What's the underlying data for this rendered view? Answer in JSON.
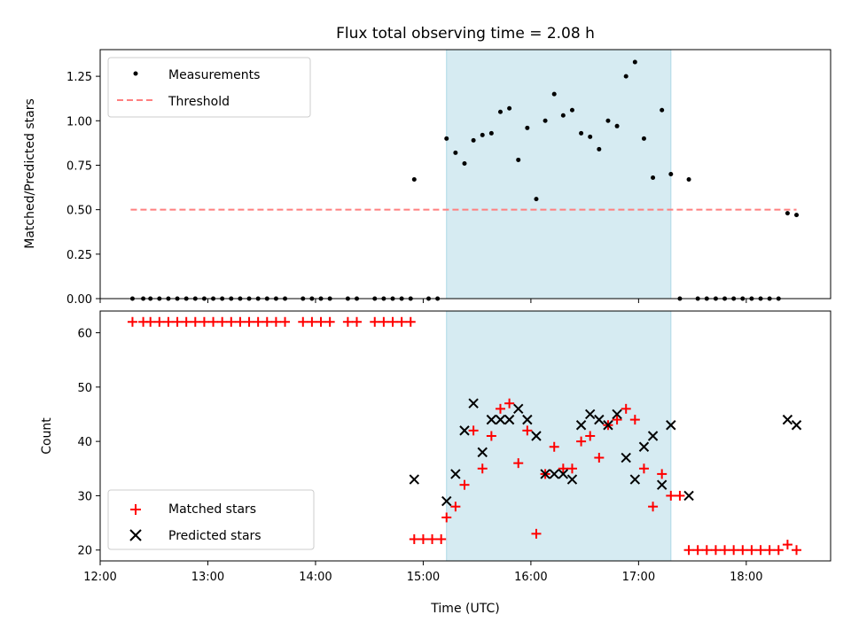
{
  "title": "Flux total observing time = 2.08 h",
  "colors": {
    "measurement": "#000000",
    "threshold": "#ff7f7f",
    "matched": "#ff0000",
    "predicted": "#000000",
    "shade": "#add8e6"
  },
  "chart_data": [
    {
      "type": "scatter",
      "title": "Flux total observing time = 2.08 h",
      "ylabel": "Matched/Predicted stars",
      "xlabel": "",
      "xlim": [
        "12:00",
        "18:47"
      ],
      "ylim": [
        0,
        1.4
      ],
      "yticks": [
        "0.00",
        "0.25",
        "0.50",
        "0.75",
        "1.00",
        "1.25"
      ],
      "legend": {
        "location": "upper left",
        "entries": [
          "Measurements",
          "Threshold"
        ]
      },
      "shaded_interval": [
        "15:13",
        "17:18"
      ],
      "threshold": {
        "name": "Threshold",
        "value": 0.5,
        "x": [
          "12:17",
          "18:28"
        ]
      },
      "series": [
        {
          "name": "Measurements",
          "points": [
            [
              "12:18",
              0
            ],
            [
              "12:24",
              0
            ],
            [
              "12:28",
              0
            ],
            [
              "12:33",
              0
            ],
            [
              "12:38",
              0
            ],
            [
              "12:43",
              0
            ],
            [
              "12:48",
              0
            ],
            [
              "12:53",
              0
            ],
            [
              "12:58",
              0
            ],
            [
              "13:03",
              0
            ],
            [
              "13:08",
              0
            ],
            [
              "13:13",
              0
            ],
            [
              "13:18",
              0
            ],
            [
              "13:23",
              0
            ],
            [
              "13:28",
              0
            ],
            [
              "13:33",
              0
            ],
            [
              "13:38",
              0
            ],
            [
              "13:43",
              0
            ],
            [
              "13:53",
              0
            ],
            [
              "13:58",
              0
            ],
            [
              "14:03",
              0
            ],
            [
              "14:08",
              0
            ],
            [
              "14:18",
              0
            ],
            [
              "14:23",
              0
            ],
            [
              "14:33",
              0
            ],
            [
              "14:38",
              0
            ],
            [
              "14:43",
              0
            ],
            [
              "14:48",
              0
            ],
            [
              "14:53",
              0
            ],
            [
              "14:55",
              0.67
            ],
            [
              "15:03",
              0
            ],
            [
              "15:08",
              0
            ],
            [
              "15:13",
              0.9
            ],
            [
              "15:18",
              0.82
            ],
            [
              "15:23",
              0.76
            ],
            [
              "15:28",
              0.89
            ],
            [
              "15:33",
              0.92
            ],
            [
              "15:38",
              0.93
            ],
            [
              "15:43",
              1.05
            ],
            [
              "15:48",
              1.07
            ],
            [
              "15:53",
              0.78
            ],
            [
              "15:58",
              0.96
            ],
            [
              "16:03",
              0.56
            ],
            [
              "16:08",
              1.0
            ],
            [
              "16:13",
              1.15
            ],
            [
              "16:18",
              1.03
            ],
            [
              "16:23",
              1.06
            ],
            [
              "16:28",
              0.93
            ],
            [
              "16:33",
              0.91
            ],
            [
              "16:38",
              0.84
            ],
            [
              "16:43",
              1.0
            ],
            [
              "16:48",
              0.97
            ],
            [
              "16:53",
              1.25
            ],
            [
              "16:58",
              1.33
            ],
            [
              "17:03",
              0.9
            ],
            [
              "17:08",
              0.68
            ],
            [
              "17:13",
              1.06
            ],
            [
              "17:18",
              0.7
            ],
            [
              "17:23",
              0
            ],
            [
              "17:28",
              0.67
            ],
            [
              "17:33",
              0
            ],
            [
              "17:38",
              0
            ],
            [
              "17:43",
              0
            ],
            [
              "17:48",
              0
            ],
            [
              "17:53",
              0
            ],
            [
              "17:58",
              0
            ],
            [
              "18:03",
              0
            ],
            [
              "18:08",
              0
            ],
            [
              "18:13",
              0
            ],
            [
              "18:18",
              0
            ],
            [
              "18:23",
              0.48
            ],
            [
              "18:28",
              0.47
            ]
          ]
        }
      ]
    },
    {
      "type": "scatter",
      "xlabel": "Time (UTC)",
      "ylabel": "Count",
      "xlim": [
        "12:00",
        "18:47"
      ],
      "ylim": [
        18,
        64
      ],
      "yticks": [
        "20",
        "30",
        "40",
        "50",
        "60"
      ],
      "xticks": [
        "12:00",
        "13:00",
        "14:00",
        "15:00",
        "16:00",
        "17:00",
        "18:00"
      ],
      "legend": {
        "location": "lower left",
        "entries": [
          "Matched stars",
          "Predicted stars"
        ]
      },
      "shaded_interval": [
        "15:13",
        "17:18"
      ],
      "series": [
        {
          "name": "Matched stars",
          "points": [
            [
              "12:18",
              62
            ],
            [
              "12:24",
              62
            ],
            [
              "12:28",
              62
            ],
            [
              "12:33",
              62
            ],
            [
              "12:38",
              62
            ],
            [
              "12:43",
              62
            ],
            [
              "12:48",
              62
            ],
            [
              "12:53",
              62
            ],
            [
              "12:58",
              62
            ],
            [
              "13:03",
              62
            ],
            [
              "13:08",
              62
            ],
            [
              "13:13",
              62
            ],
            [
              "13:18",
              62
            ],
            [
              "13:23",
              62
            ],
            [
              "13:28",
              62
            ],
            [
              "13:33",
              62
            ],
            [
              "13:38",
              62
            ],
            [
              "13:43",
              62
            ],
            [
              "13:53",
              62
            ],
            [
              "13:58",
              62
            ],
            [
              "14:03",
              62
            ],
            [
              "14:08",
              62
            ],
            [
              "14:18",
              62
            ],
            [
              "14:23",
              62
            ],
            [
              "14:33",
              62
            ],
            [
              "14:38",
              62
            ],
            [
              "14:43",
              62
            ],
            [
              "14:48",
              62
            ],
            [
              "14:53",
              62
            ],
            [
              "14:55",
              22
            ],
            [
              "15:00",
              22
            ],
            [
              "15:05",
              22
            ],
            [
              "15:10",
              22
            ],
            [
              "15:13",
              26
            ],
            [
              "15:18",
              28
            ],
            [
              "15:23",
              32
            ],
            [
              "15:28",
              42
            ],
            [
              "15:33",
              35
            ],
            [
              "15:38",
              41
            ],
            [
              "15:43",
              46
            ],
            [
              "15:48",
              47
            ],
            [
              "15:53",
              36
            ],
            [
              "15:58",
              42
            ],
            [
              "16:03",
              23
            ],
            [
              "16:08",
              34
            ],
            [
              "16:13",
              39
            ],
            [
              "16:18",
              35
            ],
            [
              "16:23",
              35
            ],
            [
              "16:28",
              40
            ],
            [
              "16:33",
              41
            ],
            [
              "16:38",
              37
            ],
            [
              "16:43",
              43
            ],
            [
              "16:48",
              44
            ],
            [
              "16:53",
              46
            ],
            [
              "16:58",
              44
            ],
            [
              "17:03",
              35
            ],
            [
              "17:08",
              28
            ],
            [
              "17:13",
              34
            ],
            [
              "17:18",
              30
            ],
            [
              "17:23",
              30
            ],
            [
              "17:28",
              20
            ],
            [
              "17:33",
              20
            ],
            [
              "17:38",
              20
            ],
            [
              "17:43",
              20
            ],
            [
              "17:48",
              20
            ],
            [
              "17:53",
              20
            ],
            [
              "17:58",
              20
            ],
            [
              "18:03",
              20
            ],
            [
              "18:08",
              20
            ],
            [
              "18:13",
              20
            ],
            [
              "18:18",
              20
            ],
            [
              "18:23",
              21
            ],
            [
              "18:28",
              20
            ]
          ]
        },
        {
          "name": "Predicted stars",
          "points": [
            [
              "14:55",
              33
            ],
            [
              "15:13",
              29
            ],
            [
              "15:18",
              34
            ],
            [
              "15:23",
              42
            ],
            [
              "15:28",
              47
            ],
            [
              "15:33",
              38
            ],
            [
              "15:38",
              44
            ],
            [
              "15:43",
              44
            ],
            [
              "15:48",
              44
            ],
            [
              "15:53",
              46
            ],
            [
              "15:58",
              44
            ],
            [
              "16:03",
              41
            ],
            [
              "16:08",
              34
            ],
            [
              "16:13",
              34
            ],
            [
              "16:18",
              34
            ],
            [
              "16:23",
              33
            ],
            [
              "16:28",
              43
            ],
            [
              "16:33",
              45
            ],
            [
              "16:38",
              44
            ],
            [
              "16:43",
              43
            ],
            [
              "16:48",
              45
            ],
            [
              "16:53",
              37
            ],
            [
              "16:58",
              33
            ],
            [
              "17:03",
              39
            ],
            [
              "17:08",
              41
            ],
            [
              "17:13",
              32
            ],
            [
              "17:18",
              43
            ],
            [
              "17:28",
              30
            ],
            [
              "18:23",
              44
            ],
            [
              "18:28",
              43
            ]
          ]
        }
      ]
    }
  ]
}
